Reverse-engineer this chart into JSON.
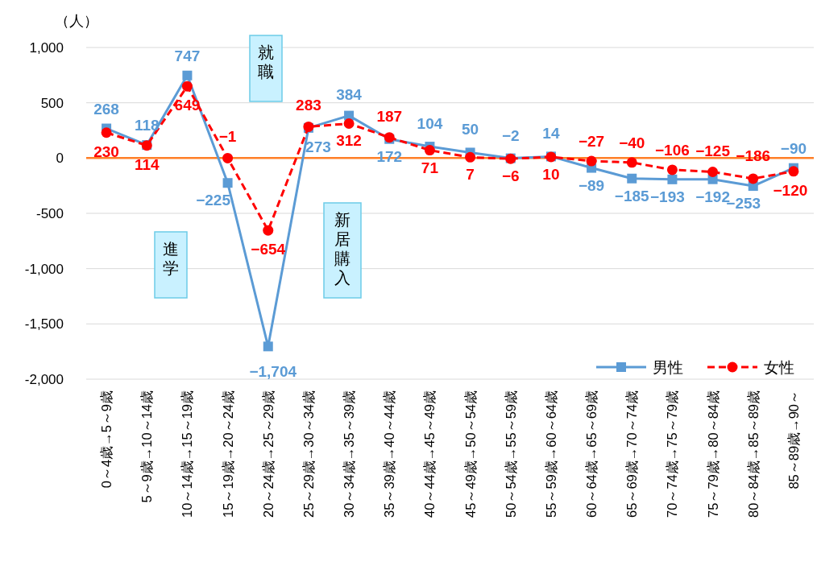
{
  "chart_data": {
    "type": "line",
    "ylabel": "（人）",
    "categories": [
      "0～4歳→5～9歳",
      "5～9歳→10～14歳",
      "10～14歳→15～19歳",
      "15～19歳→20～24歳",
      "20～24歳→25～29歳",
      "25～29歳→30～34歳",
      "30～34歳→35～39歳",
      "35～39歳→40～44歳",
      "40～44歳→45～49歳",
      "45～49歳→50～54歳",
      "50～54歳→55～59歳",
      "55～59歳→60～64歳",
      "60～64歳→65～69歳",
      "65～69歳→70～74歳",
      "70～74歳→75～79歳",
      "75～79歳→80～84歳",
      "80～84歳→85～89歳",
      "85～89歳→90～"
    ],
    "series": [
      {
        "name": "男性",
        "color": "#5b9bd5",
        "marker": "square",
        "line_style": "solid",
        "values": [
          268,
          118,
          747,
          -225,
          -1704,
          273,
          384,
          172,
          104,
          50,
          -2,
          14,
          -89,
          -185,
          -193,
          -192,
          -253,
          -90
        ],
        "value_labels": [
          "268",
          "118",
          "747",
          "−225",
          "−1,704",
          "273",
          "384",
          "172",
          "104",
          "50",
          "−2",
          "14",
          "−89",
          "−185",
          "−193",
          "−192",
          "−253",
          "−90"
        ]
      },
      {
        "name": "女性",
        "color": "#ff0000",
        "marker": "circle",
        "line_style": "dashed",
        "values": [
          230,
          114,
          649,
          -1,
          -654,
          283,
          312,
          187,
          71,
          7,
          -6,
          10,
          -27,
          -40,
          -106,
          -125,
          -186,
          -120
        ],
        "value_labels": [
          "230",
          "114",
          "649",
          "−1",
          "−654",
          "283",
          "312",
          "187",
          "71",
          "7",
          "−6",
          "10",
          "−27",
          "−40",
          "−106",
          "−125",
          "−186",
          "−120"
        ]
      }
    ],
    "ylim": [
      -2000,
      1000
    ],
    "yticks": [
      {
        "value": -2000,
        "label": "-2,000"
      },
      {
        "value": -1500,
        "label": "-1,500"
      },
      {
        "value": -1000,
        "label": "-1,000"
      },
      {
        "value": -500,
        "label": "-500"
      },
      0,
      500,
      {
        "value": 1000,
        "label": "1,000"
      }
    ],
    "grid": "y",
    "legend": "bottom right",
    "ref_lines": [
      {
        "axis": "y",
        "value": 0,
        "color": "#ff7f27"
      }
    ],
    "annotations": [
      "就職",
      "進学",
      "新居購入"
    ]
  }
}
